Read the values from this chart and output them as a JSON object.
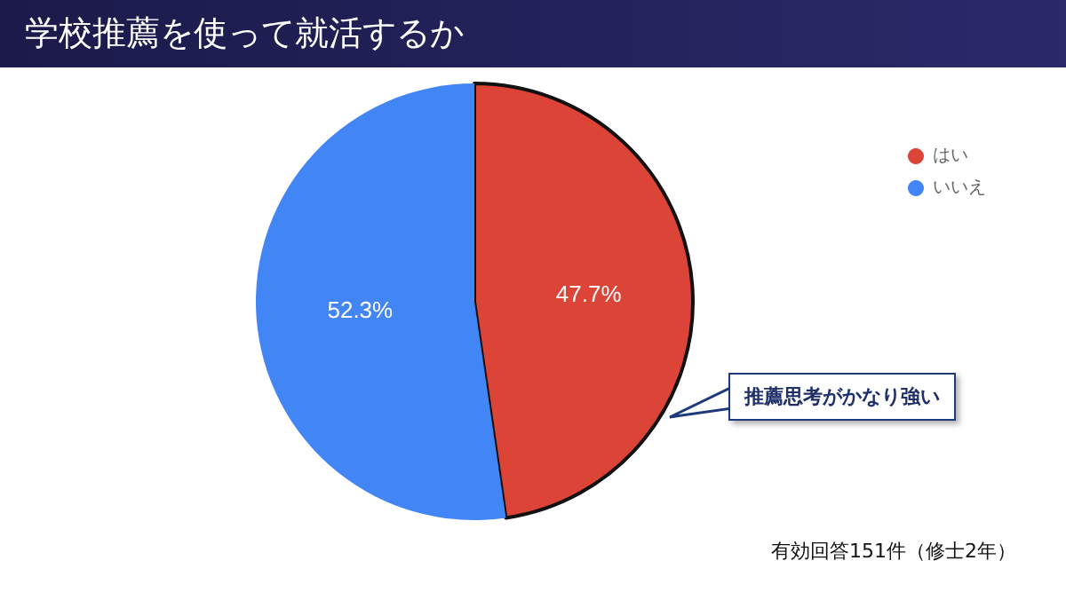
{
  "chart_data": {
    "type": "pie",
    "title": "学校推薦を使って就活するか",
    "categories": [
      "はい",
      "いいえ"
    ],
    "values": [
      47.7,
      52.3
    ],
    "colors": [
      "#db4437",
      "#4285f4"
    ],
    "value_labels": [
      "47.7%",
      "52.3%"
    ],
    "legend": "top right",
    "annotations": [
      "推薦思考がかなり強い",
      "有効回答151件（修士2年）"
    ]
  }
}
